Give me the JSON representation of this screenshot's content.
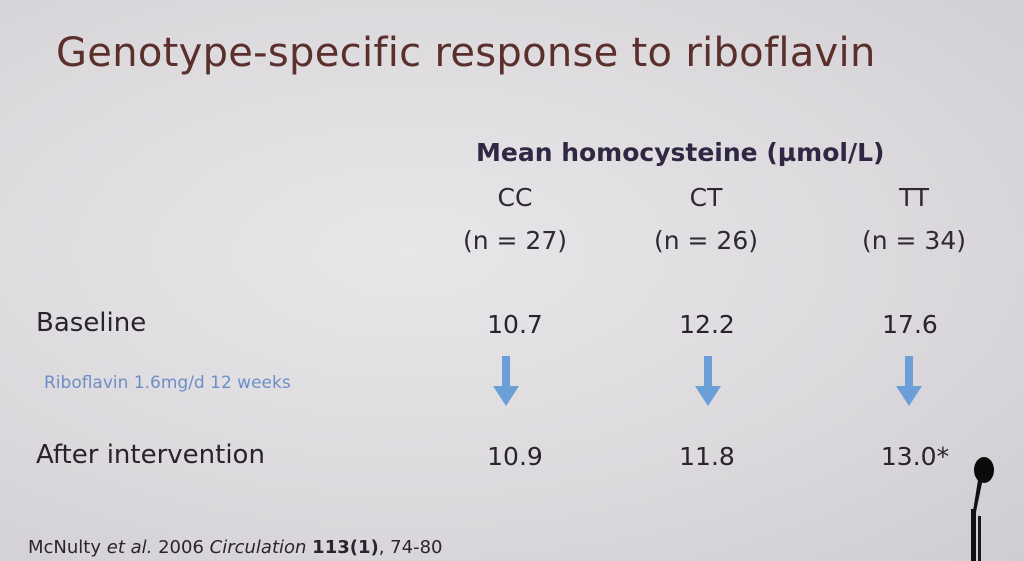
{
  "title": "Genotype-specific response to riboflavin",
  "column_header": "Mean homocysteine (µmol/L)",
  "genotypes": [
    {
      "label": "CC",
      "n": "(n = 27)"
    },
    {
      "label": "CT",
      "n": "(n = 26)"
    },
    {
      "label": "TT",
      "n": "(n = 34)"
    }
  ],
  "rows": {
    "baseline": {
      "label": "Baseline",
      "values": [
        "10.7",
        "12.2",
        "17.6"
      ]
    },
    "intervention": {
      "label": "Riboflavin 1.6mg/d 12 weeks"
    },
    "after": {
      "label": "After intervention",
      "values": [
        "10.9",
        "11.8",
        "13.0*"
      ]
    }
  },
  "citation": {
    "author": "McNulty",
    "etal": "et al.",
    "year": "2006",
    "journal": "Circulation",
    "volume": "113(1)",
    "pages": ", 74-80"
  },
  "colors": {
    "title": "#5a2f2c",
    "arrow": "#6b9fd8",
    "intervention_text": "#6d8ec6"
  },
  "icons": {
    "arrows": "arrow-down-icon",
    "microphone": "microphone-icon"
  }
}
